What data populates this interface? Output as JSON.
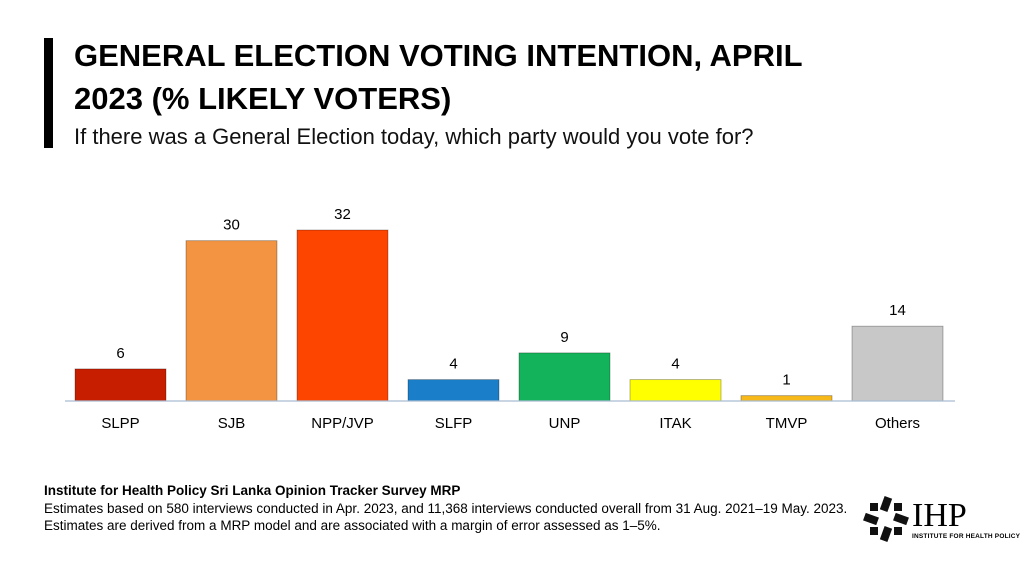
{
  "chart_data": {
    "type": "bar",
    "title": "GENERAL ELECTION VOTING INTENTION, APRIL 2023 (% LIKELY VOTERS)",
    "subtitle": "If there was a General Election today, which party would you vote for?",
    "categories": [
      "SLPP",
      "SJB",
      "NPP/JVP",
      "SLFP",
      "UNP",
      "ITAK",
      "TMVP",
      "Others"
    ],
    "values": [
      6,
      30,
      32,
      4,
      9,
      4,
      1,
      14
    ],
    "colors": [
      "#c81e00",
      "#f29441",
      "#fe4500",
      "#1a7fc8",
      "#12b35a",
      "#ffff00",
      "#f6b919",
      "#c8c8c8"
    ],
    "source": "Institute for Health Policy Sri Lanka Opinion Tracker Survey MRP",
    "note": "Estimates based on 580 interviews conducted in Apr. 2023, and 11,368 interviews conducted overall from 31 Aug. 2021–19 May. 2023. Estimates are derived from a MRP model and are associated with a margin of error assessed as 1–5%."
  },
  "logo": {
    "name": "IHP",
    "tagline": "INSTITUTE FOR HEALTH POLICY"
  }
}
